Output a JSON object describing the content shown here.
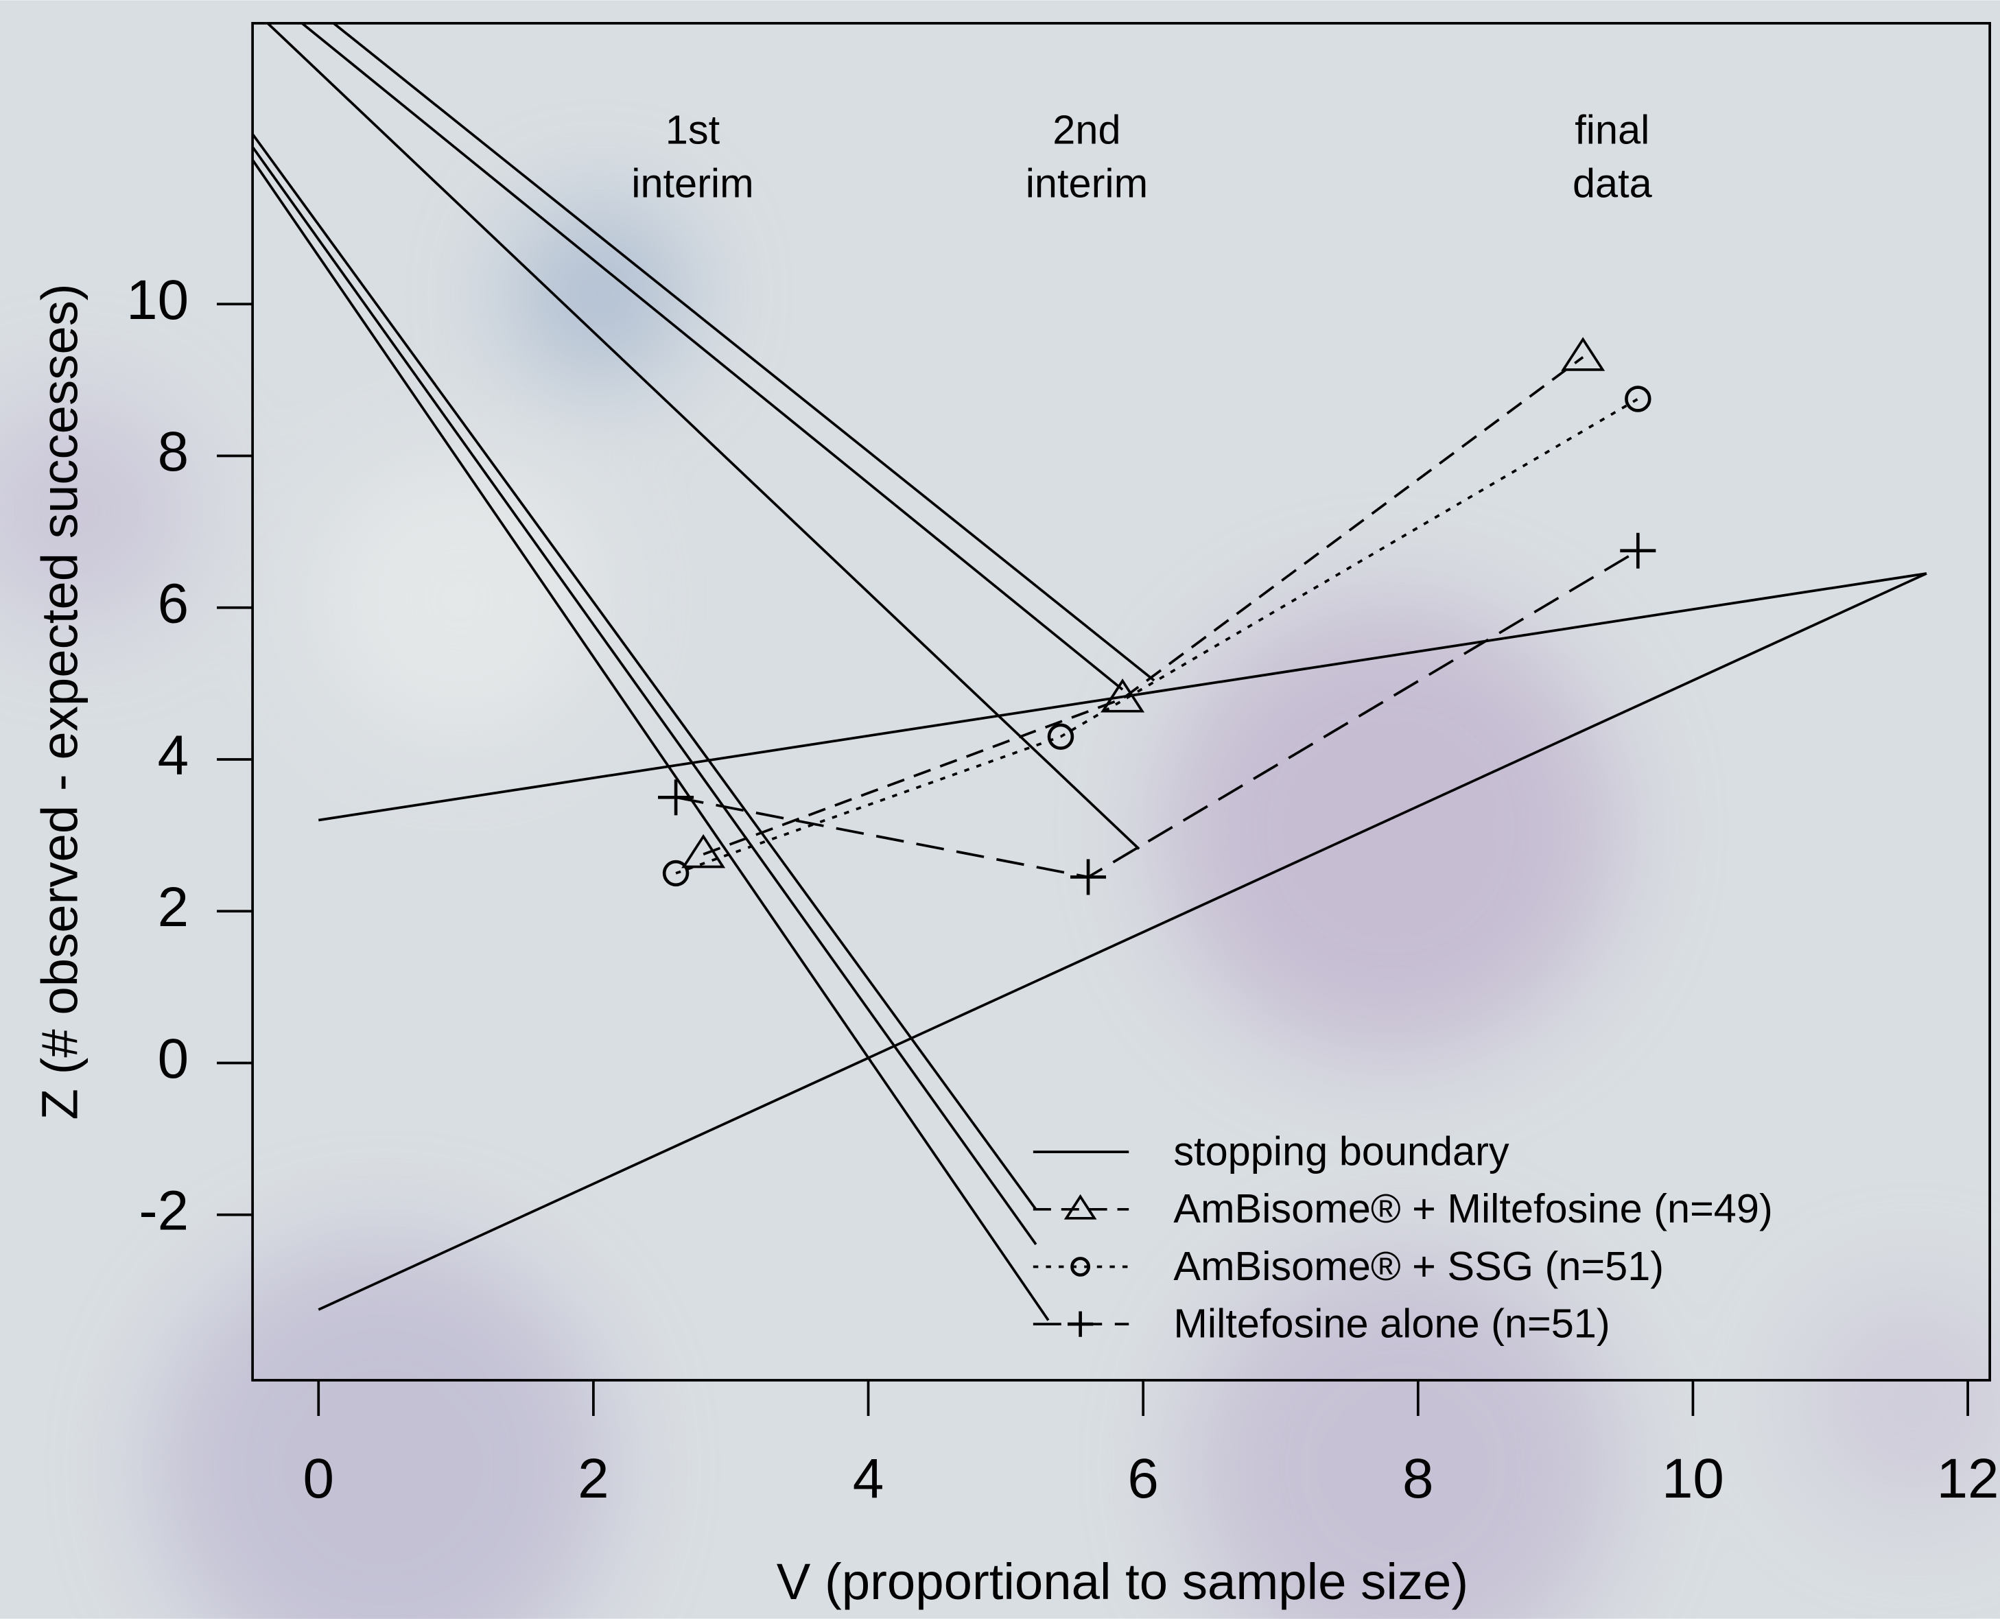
{
  "chart_data": {
    "type": "line",
    "xlabel": "V (proportional to sample size)",
    "ylabel": "Z (# observed  - expected successes)",
    "annotations": [
      [
        "1st",
        "interim"
      ],
      [
        "2nd",
        "interim"
      ],
      [
        "final",
        "data"
      ]
    ],
    "xlim": [
      -0.48,
      12.16
    ],
    "ylim": [
      -4.18,
      13.7
    ],
    "xticks": [
      0,
      2,
      4,
      6,
      8,
      10,
      12
    ],
    "yticks": [
      -2,
      0,
      2,
      4,
      6,
      8,
      10
    ],
    "series": [
      {
        "name": "stopping boundary",
        "color": "#000000",
        "style": "solid",
        "marker": "none",
        "x": [
          0,
          11.7,
          null,
          0,
          11.7,
          null,
          0.11,
          6.08,
          null,
          -0.12,
          5.85,
          null,
          -0.37,
          5.97,
          null,
          -0.48,
          5.22,
          null,
          -0.48,
          5.22,
          null,
          -0.48,
          5.31
        ],
        "values": [
          3.2,
          6.45,
          null,
          -3.25,
          6.45,
          null,
          13.7,
          5.04,
          null,
          13.7,
          4.92,
          null,
          13.7,
          2.82,
          null,
          12.24,
          -1.93,
          null,
          12.07,
          -2.39,
          null,
          11.9,
          -3.39
        ]
      },
      {
        "name": "AmBisome® + Miltefosine (n=49)",
        "color": "#000000",
        "style": "dashed",
        "marker": "triangle",
        "x": [
          2.8,
          5.85,
          9.2
        ],
        "values": [
          2.75,
          4.8,
          9.3
        ]
      },
      {
        "name": "AmBisome® + SSG (n=51)",
        "color": "#000000",
        "style": "dotted",
        "marker": "circle",
        "x": [
          2.6,
          5.4,
          9.6
        ],
        "values": [
          2.5,
          4.3,
          8.75
        ]
      },
      {
        "name": "Miltefosine alone (n=51)",
        "color": "#000000",
        "style": "longdash",
        "marker": "plus",
        "x": [
          2.6,
          5.6,
          9.6
        ],
        "values": [
          3.5,
          2.45,
          6.75
        ]
      }
    ]
  }
}
